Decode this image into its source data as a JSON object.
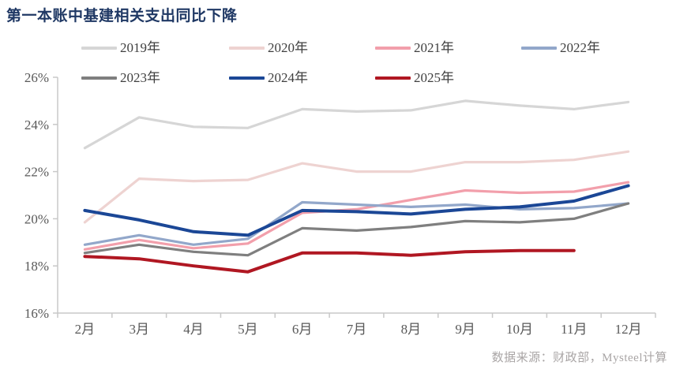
{
  "header": {
    "title": "第一本账中基建相关支出同比下降"
  },
  "footer": {
    "source": "数据来源：财政部，Mysteel计算"
  },
  "chart_data": {
    "type": "line",
    "title": "第一本账中基建相关支出同比下降",
    "categories": [
      "2月",
      "3月",
      "4月",
      "5月",
      "6月",
      "7月",
      "8月",
      "9月",
      "10月",
      "11月",
      "12月"
    ],
    "xlabel": "",
    "ylabel": "",
    "unit": "%",
    "ylim": [
      16,
      26
    ],
    "yticks": [
      16,
      18,
      20,
      22,
      24,
      26
    ],
    "ytick_labels": [
      "16%",
      "18%",
      "20%",
      "22%",
      "24%",
      "26%"
    ],
    "grid": false,
    "legend_position": "top-left-two-rows",
    "series": [
      {
        "name": "2019年",
        "color": "#d6d6d6",
        "line_width": 3.2,
        "values": [
          23.0,
          24.3,
          23.9,
          23.85,
          24.65,
          24.55,
          24.6,
          25.0,
          24.8,
          24.65,
          24.95
        ]
      },
      {
        "name": "2020年",
        "color": "#eed3d1",
        "line_width": 3.2,
        "values": [
          19.85,
          21.7,
          21.6,
          21.65,
          22.35,
          22.0,
          22.0,
          22.4,
          22.4,
          22.5,
          22.85
        ]
      },
      {
        "name": "2021年",
        "color": "#f29fab",
        "line_width": 3.2,
        "values": [
          18.7,
          19.1,
          18.75,
          18.95,
          20.25,
          20.4,
          20.8,
          21.2,
          21.1,
          21.15,
          21.55
        ]
      },
      {
        "name": "2022年",
        "color": "#92a7ca",
        "line_width": 3.2,
        "values": [
          18.9,
          19.3,
          18.9,
          19.15,
          20.7,
          20.6,
          20.5,
          20.6,
          20.4,
          20.45,
          20.65
        ]
      },
      {
        "name": "2023年",
        "color": "#7f7f7f",
        "line_width": 3.2,
        "values": [
          18.55,
          18.9,
          18.6,
          18.45,
          19.6,
          19.5,
          19.65,
          19.9,
          19.85,
          20.0,
          20.65
        ]
      },
      {
        "name": "2024年",
        "color": "#1b4796",
        "line_width": 4,
        "values": [
          20.35,
          19.95,
          19.45,
          19.3,
          20.35,
          20.3,
          20.2,
          20.4,
          20.5,
          20.75,
          21.4
        ]
      },
      {
        "name": "2025年",
        "color": "#b01722",
        "line_width": 4,
        "values": [
          18.4,
          18.3,
          18.0,
          17.75,
          18.55,
          18.55,
          18.45,
          18.6,
          18.65,
          18.65,
          null
        ]
      }
    ],
    "source": "数据来源：财政部，Mysteel计算",
    "colors": {
      "axis": "#c8c8c8",
      "tick_label": "#595959",
      "legend_text": "#3f3f3f",
      "title": "#1f3864",
      "source_text": "#a9a5a5",
      "background": "#ffffff"
    }
  }
}
